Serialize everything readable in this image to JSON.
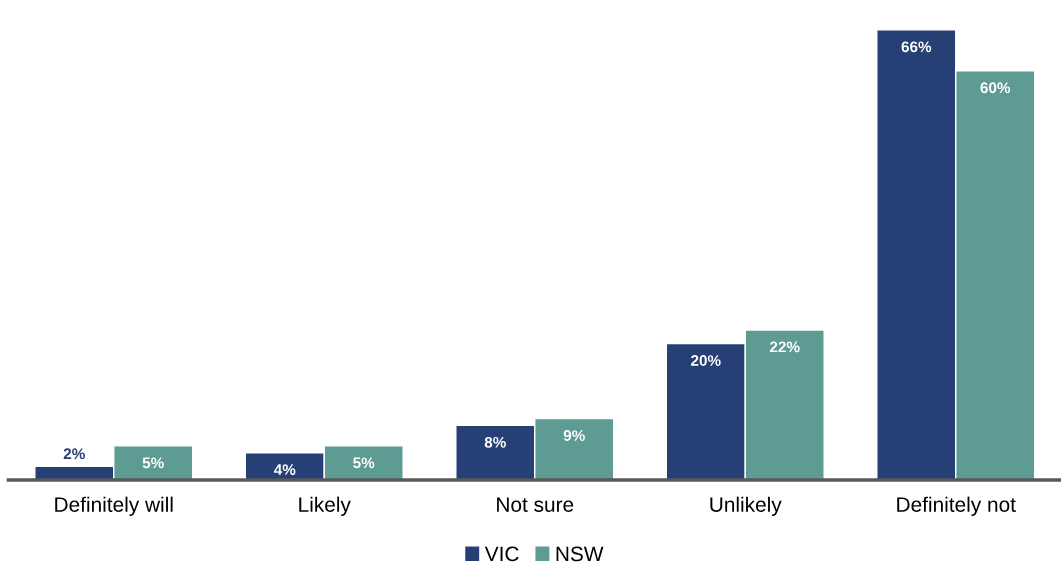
{
  "chart_data": {
    "type": "bar",
    "categories": [
      "Definitely will",
      "Likely",
      "Not sure",
      "Unlikely",
      "Definitely not"
    ],
    "series": [
      {
        "name": "VIC",
        "color": "#263f74",
        "values": [
          2,
          4,
          8,
          20,
          66
        ],
        "value_labels": [
          "2%",
          "4%",
          "8%",
          "20%",
          "66%"
        ]
      },
      {
        "name": "NSW",
        "color": "#5e9b93",
        "values": [
          5,
          5,
          9,
          22,
          60
        ],
        "value_labels": [
          "5%",
          "5%",
          "9%",
          "22%",
          "60%"
        ]
      }
    ],
    "legend": "bottom",
    "grid": false,
    "tick_labels": "x"
  }
}
